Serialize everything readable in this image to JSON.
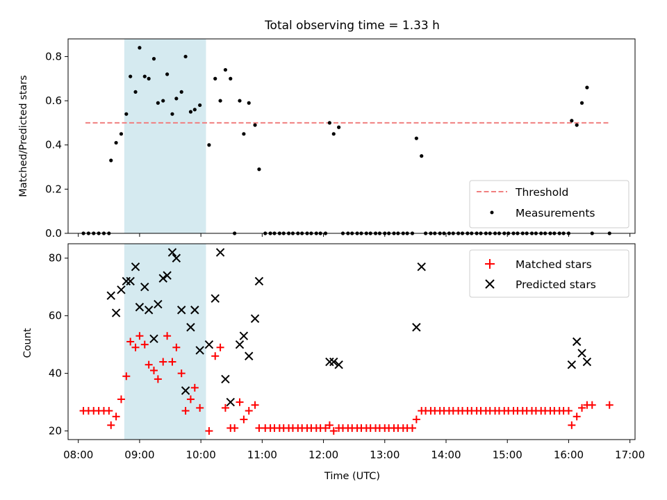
{
  "chart_data": [
    {
      "type": "scatter",
      "title": "Total observing time = 1.33 h",
      "ylabel": "Matched/Predicted stars",
      "ylim": [
        0,
        0.88
      ],
      "xlim": [
        "07:50",
        "17:05"
      ],
      "yticks": [
        "0.0",
        "0.2",
        "0.4",
        "0.6",
        "0.8"
      ],
      "highlight_span": {
        "x": [
          "08:45",
          "10:05"
        ],
        "color": "#d5eaf0"
      },
      "threshold": {
        "name": "Threshold",
        "y": 0.5,
        "x": [
          "08:07",
          "16:40"
        ],
        "color": "#f07f7f",
        "style": "dashed"
      },
      "legend": "bottom-right",
      "series": [
        {
          "name": "Measurements",
          "color": "#000000",
          "marker": "dot",
          "points": [
            [
              "08:05",
              0
            ],
            [
              "08:10",
              0
            ],
            [
              "08:15",
              0
            ],
            [
              "08:20",
              0
            ],
            [
              "08:25",
              0
            ],
            [
              "08:30",
              0
            ],
            [
              "08:32",
              0.33
            ],
            [
              "08:37",
              0.41
            ],
            [
              "08:42",
              0.45
            ],
            [
              "08:47",
              0.54
            ],
            [
              "08:51",
              0.71
            ],
            [
              "08:56",
              0.64
            ],
            [
              "09:00",
              0.84
            ],
            [
              "09:05",
              0.71
            ],
            [
              "09:09",
              0.7
            ],
            [
              "09:14",
              0.79
            ],
            [
              "09:18",
              0.59
            ],
            [
              "09:23",
              0.6
            ],
            [
              "09:27",
              0.72
            ],
            [
              "09:32",
              0.54
            ],
            [
              "09:36",
              0.61
            ],
            [
              "09:41",
              0.64
            ],
            [
              "09:45",
              0.8
            ],
            [
              "09:50",
              0.55
            ],
            [
              "09:54",
              0.56
            ],
            [
              "09:59",
              0.58
            ],
            [
              "10:08",
              0.4
            ],
            [
              "10:14",
              0.7
            ],
            [
              "10:19",
              0.6
            ],
            [
              "10:24",
              0.74
            ],
            [
              "10:29",
              0.7
            ],
            [
              "10:33",
              0
            ],
            [
              "10:38",
              0.6
            ],
            [
              "10:42",
              0.45
            ],
            [
              "10:47",
              0.59
            ],
            [
              "10:53",
              0.49
            ],
            [
              "10:57",
              0.29
            ],
            [
              "11:03",
              0
            ],
            [
              "11:08",
              0
            ],
            [
              "11:12",
              0
            ],
            [
              "11:17",
              0
            ],
            [
              "11:21",
              0
            ],
            [
              "11:26",
              0
            ],
            [
              "11:30",
              0
            ],
            [
              "11:35",
              0
            ],
            [
              "11:39",
              0
            ],
            [
              "11:44",
              0
            ],
            [
              "11:48",
              0
            ],
            [
              "11:53",
              0
            ],
            [
              "11:57",
              0
            ],
            [
              "12:02",
              0
            ],
            [
              "12:06",
              0.5
            ],
            [
              "12:10",
              0.45
            ],
            [
              "12:15",
              0.48
            ],
            [
              "12:19",
              0
            ],
            [
              "12:24",
              0
            ],
            [
              "12:28",
              0
            ],
            [
              "12:33",
              0
            ],
            [
              "12:37",
              0
            ],
            [
              "12:42",
              0
            ],
            [
              "12:46",
              0
            ],
            [
              "12:51",
              0
            ],
            [
              "12:55",
              0
            ],
            [
              "13:00",
              0
            ],
            [
              "13:04",
              0
            ],
            [
              "13:09",
              0
            ],
            [
              "13:13",
              0
            ],
            [
              "13:18",
              0
            ],
            [
              "13:22",
              0
            ],
            [
              "13:27",
              0
            ],
            [
              "13:31",
              0.43
            ],
            [
              "13:36",
              0.35
            ],
            [
              "13:40",
              0
            ],
            [
              "13:45",
              0
            ],
            [
              "13:49",
              0
            ],
            [
              "13:54",
              0
            ],
            [
              "13:58",
              0
            ],
            [
              "14:03",
              0
            ],
            [
              "14:07",
              0
            ],
            [
              "14:12",
              0
            ],
            [
              "14:16",
              0
            ],
            [
              "14:21",
              0
            ],
            [
              "14:25",
              0
            ],
            [
              "14:30",
              0
            ],
            [
              "14:34",
              0
            ],
            [
              "14:39",
              0
            ],
            [
              "14:43",
              0
            ],
            [
              "14:48",
              0
            ],
            [
              "14:52",
              0
            ],
            [
              "14:57",
              0
            ],
            [
              "15:01",
              0
            ],
            [
              "15:06",
              0
            ],
            [
              "15:10",
              0
            ],
            [
              "15:15",
              0
            ],
            [
              "15:19",
              0
            ],
            [
              "15:24",
              0
            ],
            [
              "15:28",
              0
            ],
            [
              "15:33",
              0
            ],
            [
              "15:37",
              0
            ],
            [
              "15:42",
              0
            ],
            [
              "15:46",
              0
            ],
            [
              "15:51",
              0
            ],
            [
              "15:55",
              0
            ],
            [
              "16:00",
              0
            ],
            [
              "16:03",
              0.51
            ],
            [
              "16:08",
              0.49
            ],
            [
              "16:13",
              0.59
            ],
            [
              "16:18",
              0.66
            ],
            [
              "16:23",
              0
            ],
            [
              "16:40",
              0
            ]
          ]
        }
      ]
    },
    {
      "type": "scatter",
      "xlabel": "Time (UTC)",
      "ylabel": "Count",
      "ylim": [
        17,
        85
      ],
      "xlim": [
        "07:50",
        "17:05"
      ],
      "yticks": [
        "20",
        "40",
        "60",
        "80"
      ],
      "xticks": [
        "08:00",
        "09:00",
        "10:00",
        "11:00",
        "12:00",
        "13:00",
        "14:00",
        "15:00",
        "16:00",
        "17:00"
      ],
      "highlight_span": {
        "x": [
          "08:45",
          "10:05"
        ],
        "color": "#d5eaf0"
      },
      "legend": "top-right",
      "series": [
        {
          "name": "Matched stars",
          "color": "#ff0000",
          "marker": "plus",
          "points": [
            [
              "08:05",
              27
            ],
            [
              "08:10",
              27
            ],
            [
              "08:15",
              27
            ],
            [
              "08:20",
              27
            ],
            [
              "08:25",
              27
            ],
            [
              "08:30",
              27
            ],
            [
              "08:32",
              22
            ],
            [
              "08:37",
              25
            ],
            [
              "08:42",
              31
            ],
            [
              "08:47",
              39
            ],
            [
              "08:51",
              51
            ],
            [
              "08:56",
              49
            ],
            [
              "09:00",
              53
            ],
            [
              "09:05",
              50
            ],
            [
              "09:09",
              43
            ],
            [
              "09:14",
              41
            ],
            [
              "09:18",
              38
            ],
            [
              "09:23",
              44
            ],
            [
              "09:27",
              53
            ],
            [
              "09:32",
              44
            ],
            [
              "09:36",
              49
            ],
            [
              "09:41",
              40
            ],
            [
              "09:45",
              27
            ],
            [
              "09:50",
              31
            ],
            [
              "09:54",
              35
            ],
            [
              "09:59",
              28
            ],
            [
              "10:08",
              20
            ],
            [
              "10:14",
              46
            ],
            [
              "10:19",
              49
            ],
            [
              "10:24",
              28
            ],
            [
              "10:29",
              21
            ],
            [
              "10:33",
              21
            ],
            [
              "10:38",
              30
            ],
            [
              "10:42",
              24
            ],
            [
              "10:47",
              27
            ],
            [
              "10:53",
              29
            ],
            [
              "10:57",
              21
            ],
            [
              "11:03",
              21
            ],
            [
              "11:08",
              21
            ],
            [
              "11:12",
              21
            ],
            [
              "11:17",
              21
            ],
            [
              "11:21",
              21
            ],
            [
              "11:26",
              21
            ],
            [
              "11:30",
              21
            ],
            [
              "11:35",
              21
            ],
            [
              "11:39",
              21
            ],
            [
              "11:44",
              21
            ],
            [
              "11:48",
              21
            ],
            [
              "11:53",
              21
            ],
            [
              "11:57",
              21
            ],
            [
              "12:02",
              21
            ],
            [
              "12:06",
              22
            ],
            [
              "12:10",
              20
            ],
            [
              "12:15",
              21
            ],
            [
              "12:19",
              21
            ],
            [
              "12:24",
              21
            ],
            [
              "12:28",
              21
            ],
            [
              "12:33",
              21
            ],
            [
              "12:37",
              21
            ],
            [
              "12:42",
              21
            ],
            [
              "12:46",
              21
            ],
            [
              "12:51",
              21
            ],
            [
              "12:55",
              21
            ],
            [
              "13:00",
              21
            ],
            [
              "13:04",
              21
            ],
            [
              "13:09",
              21
            ],
            [
              "13:13",
              21
            ],
            [
              "13:18",
              21
            ],
            [
              "13:22",
              21
            ],
            [
              "13:27",
              21
            ],
            [
              "13:31",
              24
            ],
            [
              "13:36",
              27
            ],
            [
              "13:40",
              27
            ],
            [
              "13:45",
              27
            ],
            [
              "13:49",
              27
            ],
            [
              "13:54",
              27
            ],
            [
              "13:58",
              27
            ],
            [
              "14:03",
              27
            ],
            [
              "14:07",
              27
            ],
            [
              "14:12",
              27
            ],
            [
              "14:16",
              27
            ],
            [
              "14:21",
              27
            ],
            [
              "14:25",
              27
            ],
            [
              "14:30",
              27
            ],
            [
              "14:34",
              27
            ],
            [
              "14:39",
              27
            ],
            [
              "14:43",
              27
            ],
            [
              "14:48",
              27
            ],
            [
              "14:52",
              27
            ],
            [
              "14:57",
              27
            ],
            [
              "15:01",
              27
            ],
            [
              "15:06",
              27
            ],
            [
              "15:10",
              27
            ],
            [
              "15:15",
              27
            ],
            [
              "15:19",
              27
            ],
            [
              "15:24",
              27
            ],
            [
              "15:28",
              27
            ],
            [
              "15:33",
              27
            ],
            [
              "15:37",
              27
            ],
            [
              "15:42",
              27
            ],
            [
              "15:46",
              27
            ],
            [
              "15:51",
              27
            ],
            [
              "15:55",
              27
            ],
            [
              "16:00",
              27
            ],
            [
              "16:03",
              22
            ],
            [
              "16:08",
              25
            ],
            [
              "16:13",
              28
            ],
            [
              "16:18",
              29
            ],
            [
              "16:23",
              29
            ],
            [
              "16:40",
              29
            ]
          ]
        },
        {
          "name": "Predicted stars",
          "color": "#000000",
          "marker": "x",
          "points": [
            [
              "08:32",
              67
            ],
            [
              "08:37",
              61
            ],
            [
              "08:42",
              69
            ],
            [
              "08:47",
              72
            ],
            [
              "08:51",
              72
            ],
            [
              "08:56",
              77
            ],
            [
              "09:00",
              63
            ],
            [
              "09:05",
              70
            ],
            [
              "09:09",
              62
            ],
            [
              "09:14",
              52
            ],
            [
              "09:18",
              64
            ],
            [
              "09:23",
              73
            ],
            [
              "09:27",
              74
            ],
            [
              "09:32",
              82
            ],
            [
              "09:36",
              80
            ],
            [
              "09:41",
              62
            ],
            [
              "09:45",
              34
            ],
            [
              "09:50",
              56
            ],
            [
              "09:54",
              62
            ],
            [
              "09:59",
              48
            ],
            [
              "10:08",
              50
            ],
            [
              "10:14",
              66
            ],
            [
              "10:19",
              82
            ],
            [
              "10:24",
              38
            ],
            [
              "10:29",
              30
            ],
            [
              "10:38",
              50
            ],
            [
              "10:42",
              53
            ],
            [
              "10:47",
              46
            ],
            [
              "10:53",
              59
            ],
            [
              "10:57",
              72
            ],
            [
              "12:06",
              44
            ],
            [
              "12:10",
              44
            ],
            [
              "12:15",
              43
            ],
            [
              "13:31",
              56
            ],
            [
              "13:36",
              77
            ],
            [
              "16:03",
              43
            ],
            [
              "16:08",
              51
            ],
            [
              "16:13",
              47
            ],
            [
              "16:18",
              44
            ]
          ]
        }
      ]
    }
  ]
}
